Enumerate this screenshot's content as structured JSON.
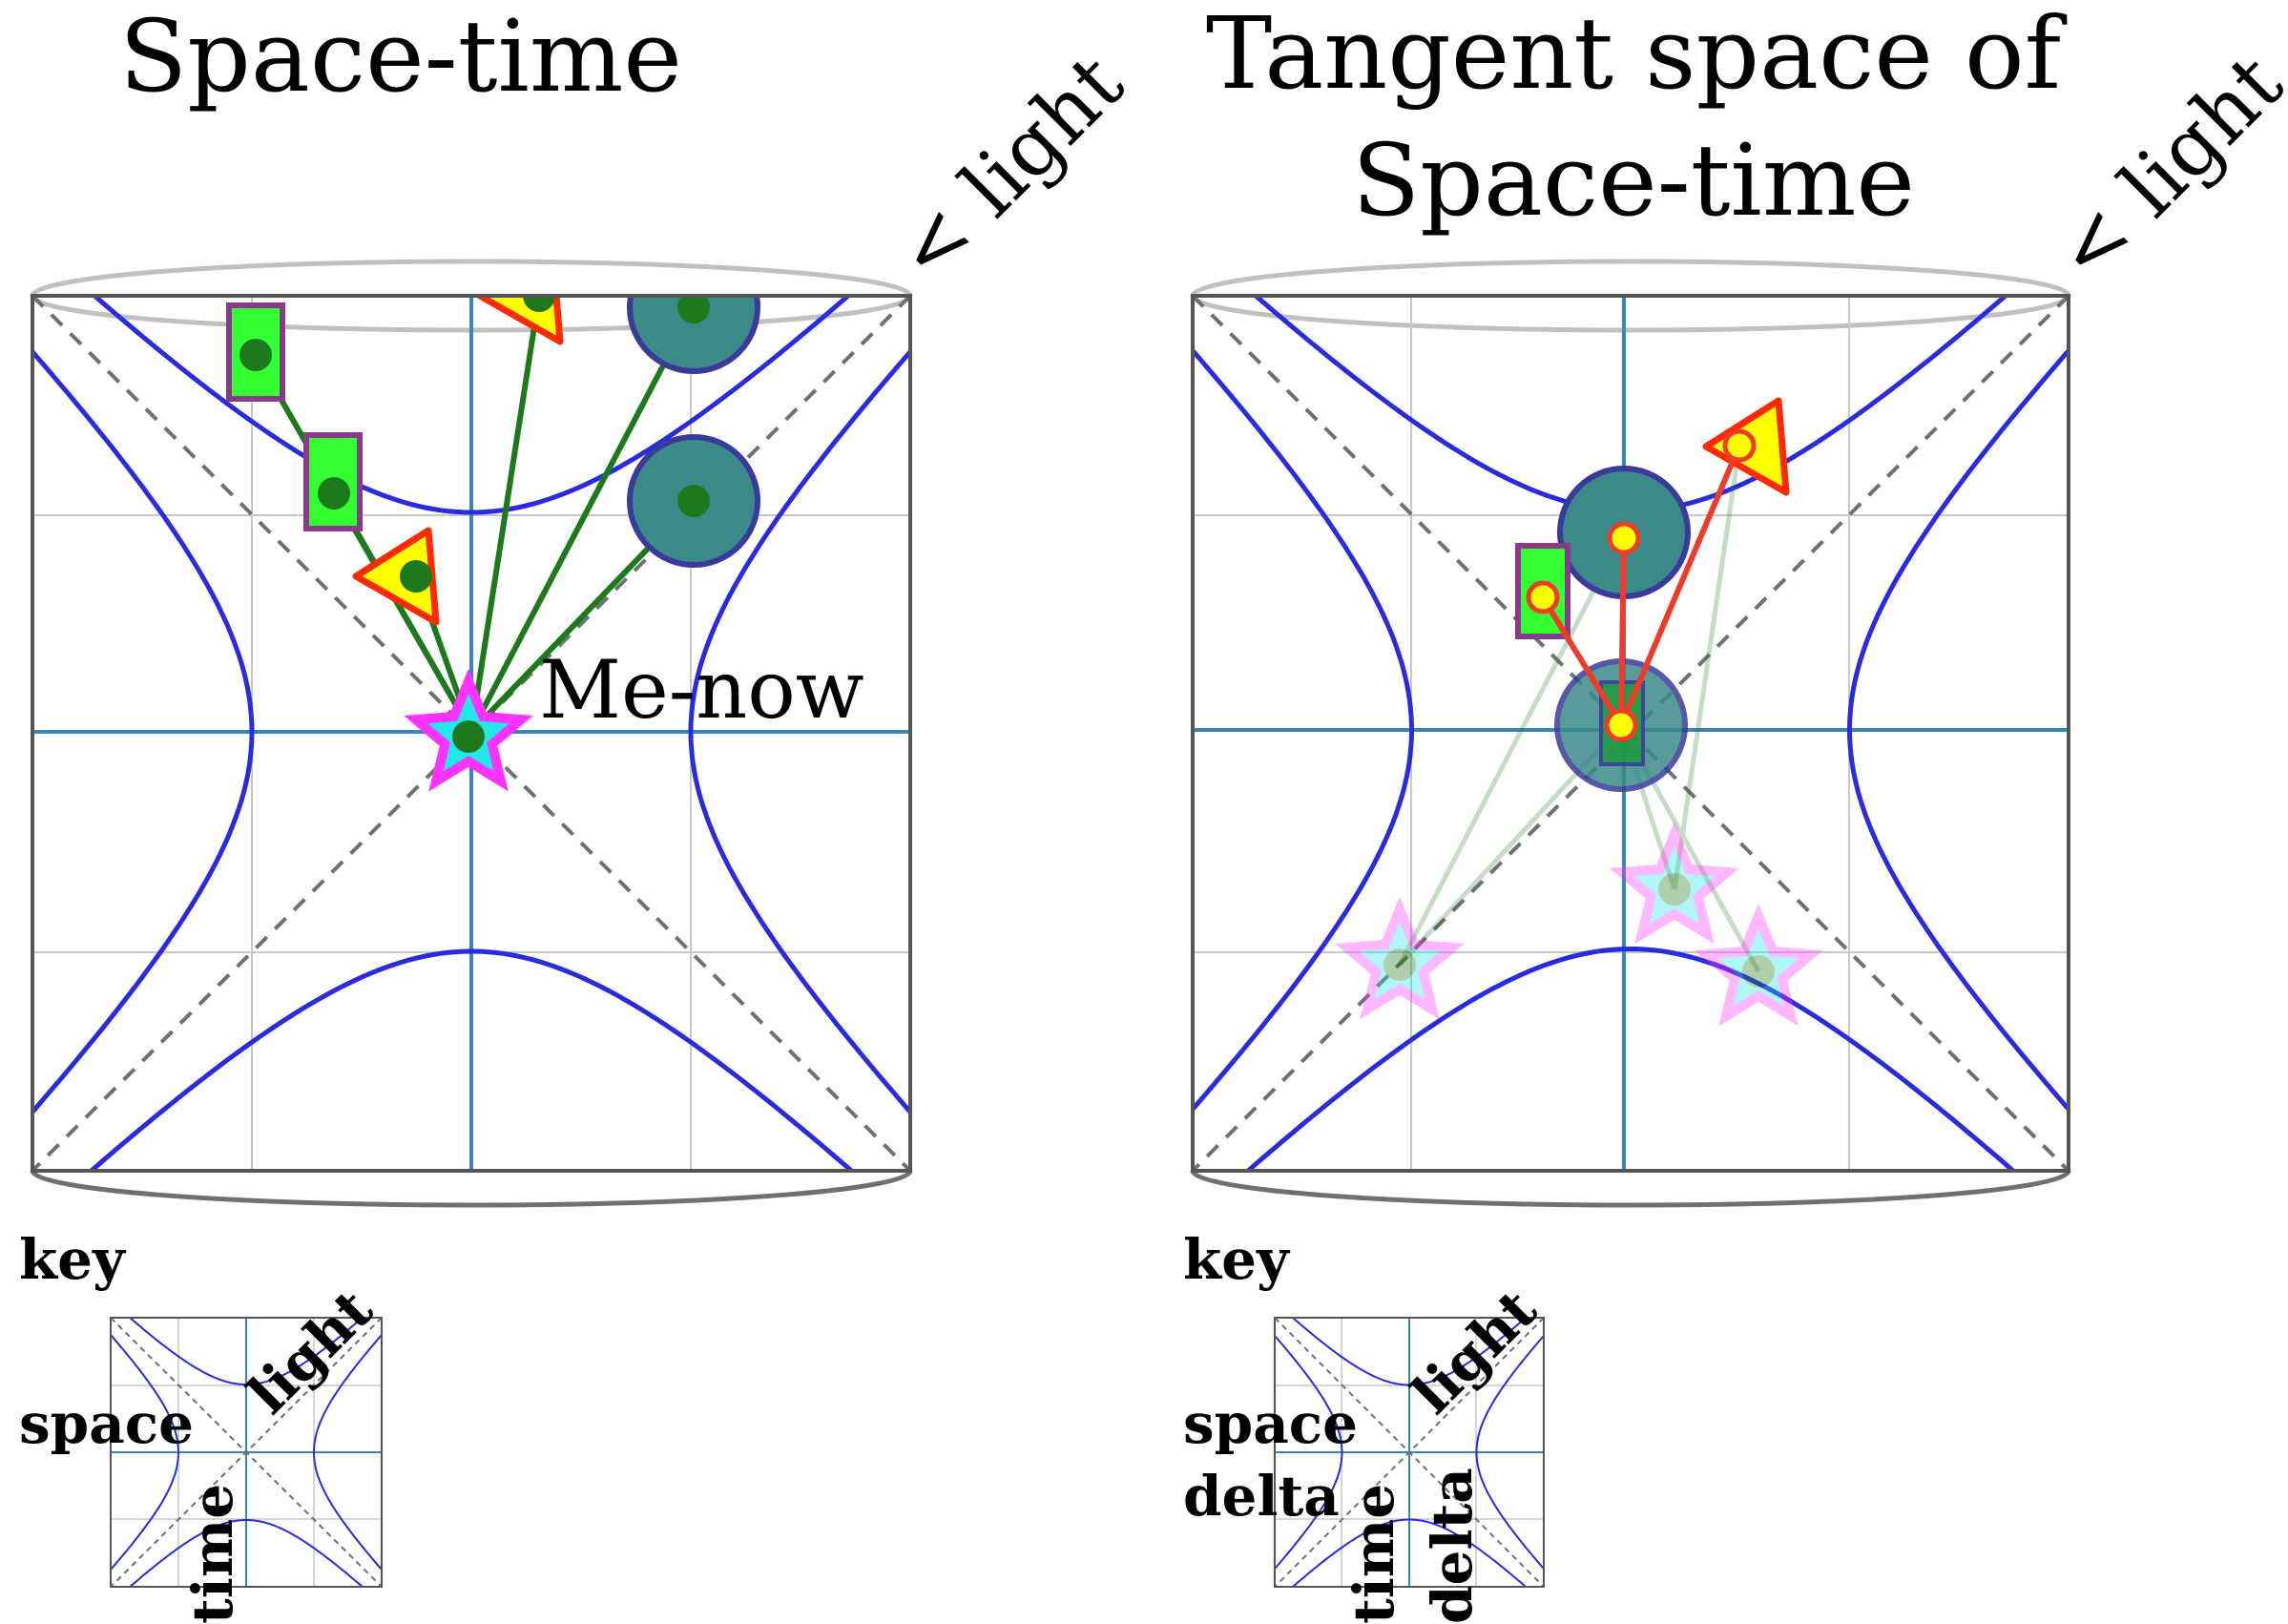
{
  "left_panel": {
    "title": "Space-time",
    "light_label": "< light",
    "me_label": "Me-now",
    "key": {
      "heading": "key",
      "space": "space",
      "light": "light",
      "time": "time"
    }
  },
  "right_panel": {
    "title_line1": "Tangent space of",
    "title_line2": "Space-time",
    "light_label": "< light",
    "key": {
      "heading": "key",
      "space": "space",
      "space2": "delta",
      "light": "light",
      "time": "time",
      "time2": "delta"
    }
  },
  "colors": {
    "hyperbola": "#2a2ae0",
    "axis": "#3b86b8",
    "grid": "#c8c8c8",
    "worldline_green": "#1c7a1c",
    "worldline_red": "#f03a2a",
    "marker_fill": "#33ff33",
    "marker_border": "#8a3a8a",
    "triangle_fill": "#ffff00",
    "triangle_border": "#ff2a00",
    "circle_fill": "#3a8a8a",
    "circle_border": "#3a3a9a",
    "star_border": "#ff33ff",
    "star_fill": "#22e8e8"
  },
  "icons": {
    "rectangle": "green-rectangle-icon",
    "triangle": "yellow-triangle-icon",
    "circle": "teal-circle-icon",
    "star": "star-icon"
  }
}
